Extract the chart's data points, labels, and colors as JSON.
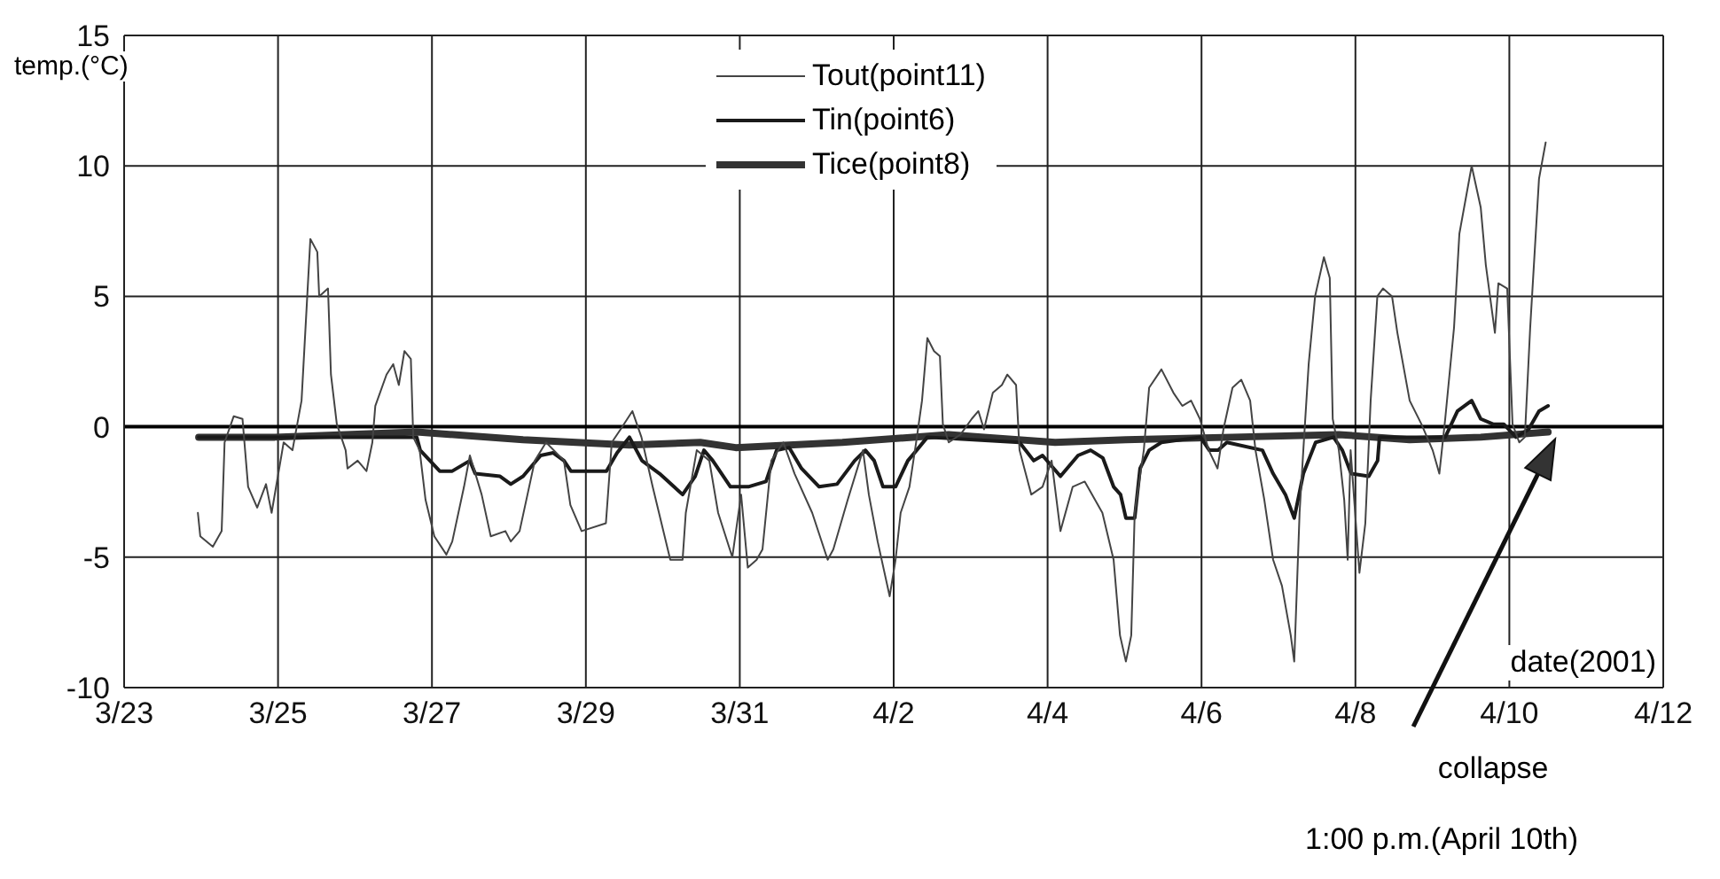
{
  "chart_data": {
    "type": "line",
    "xlabel": "date(2001)",
    "ylabel": "temp.(°C)",
    "xlim": [
      "2001-03-23",
      "2001-04-12"
    ],
    "xticks": [
      {
        "value": "2001-03-23",
        "label": "3/23"
      },
      {
        "value": "2001-03-25",
        "label": "3/25"
      },
      {
        "value": "2001-03-27",
        "label": "3/27"
      },
      {
        "value": "2001-03-29",
        "label": "3/29"
      },
      {
        "value": "2001-03-31",
        "label": "3/31"
      },
      {
        "value": "2001-04-02",
        "label": "4/2"
      },
      {
        "value": "2001-04-04",
        "label": "4/4"
      },
      {
        "value": "2001-04-06",
        "label": "4/6"
      },
      {
        "value": "2001-04-08",
        "label": "4/8"
      },
      {
        "value": "2001-04-10",
        "label": "4/10"
      },
      {
        "value": "2001-04-12",
        "label": "4/12"
      }
    ],
    "ylim": [
      -10,
      15
    ],
    "yticks": [
      -10,
      -5,
      0,
      5,
      10,
      15
    ],
    "grid": true,
    "legend": "top",
    "marker": "none",
    "line_style": "solid",
    "ref_lines": [
      {
        "axis": "y",
        "value": 0,
        "color": "#000000"
      }
    ],
    "annotations": [
      "collapse",
      "1:00 p.m.(April 10th)"
    ],
    "series": [
      {
        "name": "Tout(point11)",
        "color": "#444444",
        "x": [
          "2001-03-23T23:00",
          "2001-03-23T23:45",
          "2001-03-24T03:40",
          "2001-03-24T06:25",
          "2001-03-24T07:20",
          "2001-03-24T10:10",
          "2001-03-24T12:55",
          "2001-03-24T14:40",
          "2001-03-24T17:30",
          "2001-03-24T20:15",
          "2001-03-24T22:00",
          "2001-03-25T01:45",
          "2001-03-25T04:30",
          "2001-03-25T07:20",
          "2001-03-25T10:05",
          "2001-03-25T12:15",
          "2001-03-25T12:50",
          "2001-03-25T15:35",
          "2001-03-25T16:30",
          "2001-03-25T18:20",
          "2001-03-25T21:05",
          "2001-03-25T21:40",
          "2001-03-26T00:50",
          "2001-03-26T03:35",
          "2001-03-26T05:25",
          "2001-03-26T06:20",
          "2001-03-26T09:50",
          "2001-03-26T11:55",
          "2001-03-26T13:40",
          "2001-03-26T15:25",
          "2001-03-26T17:25",
          "2001-03-26T18:10",
          "2001-03-26T20:10",
          "2001-03-26T22:00",
          "2001-03-27T00:45",
          "2001-03-27T04:30",
          "2001-03-27T06:20",
          "2001-03-27T10:00",
          "2001-03-27T11:50",
          "2001-03-27T15:30",
          "2001-03-27T18:20",
          "2001-03-27T22:55",
          "2001-03-28T00:35",
          "2001-03-28T03:20",
          "2001-03-28T08:05",
          "2001-03-28T11:35",
          "2001-03-28T17:10",
          "2001-03-28T19:10",
          "2001-03-28T22:40",
          "2001-03-29T06:15",
          "2001-03-29T08:05",
          "2001-03-29T10:50",
          "2001-03-29T14:30",
          "2001-03-29T17:20",
          "2001-03-29T20:50",
          "2001-03-30T02:20",
          "2001-03-30T06:10",
          "2001-03-30T07:10",
          "2001-03-30T10:35",
          "2001-03-30T14:30",
          "2001-03-30T17:15",
          "2001-03-30T21:40",
          "2001-03-31T00:25",
          "2001-03-31T02:30",
          "2001-03-31T05:15",
          "2001-03-31T07:05",
          "2001-03-31T09:50",
          "2001-03-31T13:35",
          "2001-03-31T17:05",
          "2001-03-31T22:35",
          "2001-04-01T03:25",
          "2001-04-01T05:10",
          "2001-04-01T09:40",
          "2001-04-01T14:25",
          "2001-04-01T16:15",
          "2001-04-01T19:00",
          "2001-04-01T22:45",
          "2001-04-02T00:35",
          "2001-04-02T02:10",
          "2001-04-02T04:55",
          "2001-04-02T07:00",
          "2001-04-02T08:50",
          "2001-04-02T10:30",
          "2001-04-02T12:35",
          "2001-04-02T14:25",
          "2001-04-02T15:20",
          "2001-04-02T17:10",
          "2001-04-02T20:50",
          "2001-04-03T00:20",
          "2001-04-03T02:25",
          "2001-04-03T04:10",
          "2001-04-03T06:55",
          "2001-04-03T09:45",
          "2001-04-03T11:25",
          "2001-04-03T14:10",
          "2001-04-03T15:15",
          "2001-04-03T18:55",
          "2001-04-03T22:25",
          "2001-04-04T01:15",
          "2001-04-04T04:00",
          "2001-04-04T07:50",
          "2001-04-04T11:35",
          "2001-04-04T17:05",
          "2001-04-04T20:35",
          "2001-04-04T22:35",
          "2001-04-05T00:25",
          "2001-04-05T02:05",
          "2001-04-05T03:10",
          "2001-04-05T06:00",
          "2001-04-05T07:40",
          "2001-04-05T11:30",
          "2001-04-05T15:15",
          "2001-04-05T18:00",
          "2001-04-05T20:45",
          "2001-04-05T23:30",
          "2001-04-06T02:15",
          "2001-04-06T05:00",
          "2001-04-06T06:50",
          "2001-04-06T09:40",
          "2001-04-06T12:25",
          "2001-04-06T15:10",
          "2001-04-06T16:50",
          "2001-04-06T19:35",
          "2001-04-06T22:20",
          "2001-04-07T01:05",
          "2001-04-07T03:50",
          "2001-04-07T04:55",
          "2001-04-07T06:35",
          "2001-04-07T07:45",
          "2001-04-07T09:25",
          "2001-04-07T11:25",
          "2001-04-07T14:10",
          "2001-04-07T16:00",
          "2001-04-07T16:55",
          "2001-04-07T18:50",
          "2001-04-07T20:30",
          "2001-04-07T21:35",
          "2001-04-07T22:30",
          "2001-04-08T01:15",
          "2001-04-08T03:05",
          "2001-04-08T04:45",
          "2001-04-08T06:50",
          "2001-04-08T08:35",
          "2001-04-08T11:25",
          "2001-04-08T13:05",
          "2001-04-08T16:55",
          "2001-04-08T20:35",
          "2001-04-09T00:05",
          "2001-04-09T02:10",
          "2001-04-09T04:00",
          "2001-04-09T06:45",
          "2001-04-09T08:25",
          "2001-04-09T12:15",
          "2001-04-09T15:05",
          "2001-04-09T16:40",
          "2001-04-09T19:30",
          "2001-04-09T20:35",
          "2001-04-09T23:20",
          "2001-04-10T01:00",
          "2001-04-10T03:05",
          "2001-04-10T04:50",
          "2001-04-10T06:30",
          "2001-04-10T09:15",
          "2001-04-10T11:20"
        ],
        "values": [
          -3.3,
          -4.2,
          -4.6,
          -4.0,
          -0.6,
          0.4,
          0.3,
          -2.3,
          -3.1,
          -2.2,
          -3.3,
          -0.6,
          -0.9,
          1.0,
          7.2,
          6.7,
          5.0,
          5.3,
          2.0,
          0.1,
          -0.9,
          -1.6,
          -1.3,
          -1.7,
          -0.6,
          0.8,
          2.0,
          2.4,
          1.6,
          2.9,
          2.6,
          -0.4,
          -0.9,
          -2.8,
          -4.2,
          -4.9,
          -4.4,
          -2.3,
          -1.1,
          -2.6,
          -4.2,
          -4.0,
          -4.4,
          -4.0,
          -1.3,
          -0.6,
          -1.3,
          -3.0,
          -4.0,
          -3.7,
          -0.6,
          -0.1,
          0.6,
          -0.4,
          -2.3,
          -5.1,
          -5.1,
          -3.3,
          -0.9,
          -1.3,
          -3.3,
          -5.0,
          -2.6,
          -5.4,
          -5.1,
          -4.7,
          -1.3,
          -0.6,
          -1.8,
          -3.3,
          -5.1,
          -4.7,
          -2.8,
          -0.9,
          -2.6,
          -4.4,
          -6.5,
          -5.1,
          -3.3,
          -2.3,
          -0.6,
          1.0,
          3.4,
          2.9,
          2.7,
          0.1,
          -0.6,
          -0.3,
          0.3,
          0.6,
          -0.1,
          1.3,
          1.6,
          2.0,
          1.6,
          -0.9,
          -2.6,
          -2.3,
          -1.3,
          -4.0,
          -2.3,
          -2.1,
          -3.3,
          -5.1,
          -8.0,
          -9.0,
          -8.0,
          -3.3,
          -0.9,
          1.5,
          2.2,
          1.3,
          0.8,
          1.0,
          0.3,
          -0.9,
          -1.6,
          -0.1,
          1.5,
          1.8,
          1.0,
          -0.9,
          -2.8,
          -5.1,
          -6.1,
          -8.0,
          -9.0,
          -3.3,
          -0.9,
          2.4,
          5.0,
          6.5,
          5.7,
          0.3,
          -0.9,
          -2.8,
          -5.1,
          -0.9,
          -5.6,
          -3.7,
          1.0,
          5.0,
          5.3,
          5.0,
          3.6,
          1.0,
          0.1,
          -0.9,
          -1.8,
          0.3,
          3.8,
          7.4,
          10.0,
          8.4,
          6.2,
          3.6,
          5.5,
          5.3,
          0.1,
          -0.6,
          -0.4,
          3.8,
          9.5,
          10.9
        ]
      },
      {
        "name": "Tin(point6)",
        "color": "#1a1a1a",
        "x": [
          "2001-03-23T23:15",
          "2001-03-26T19:15",
          "2001-03-26T20:20",
          "2001-03-27T02:25",
          "2001-03-27T06:20",
          "2001-03-27T11:50",
          "2001-03-27T13:30",
          "2001-03-27T21:15",
          "2001-03-28T00:35",
          "2001-03-28T04:25",
          "2001-03-28T09:55",
          "2001-03-28T13:50",
          "2001-03-28T17:10",
          "2001-03-28T19:20",
          "2001-03-29T06:25",
          "2001-03-29T09:45",
          "2001-03-29T13:35",
          "2001-03-29T17:30",
          "2001-03-29T23:00",
          "2001-03-30T06:10",
          "2001-03-30T10:05",
          "2001-03-30T12:50",
          "2001-03-30T15:35",
          "2001-03-30T21:05",
          "2001-03-31T02:40",
          "2001-03-31T08:10",
          "2001-03-31T11:30",
          "2001-03-31T15:25",
          "2001-03-31T19:15",
          "2001-04-01T00:45",
          "2001-04-01T06:20",
          "2001-04-01T11:50",
          "2001-04-01T15:10",
          "2001-04-01T17:55",
          "2001-04-01T20:40",
          "2001-04-02T00:35",
          "2001-04-02T04:25",
          "2001-04-02T07:10",
          "2001-04-02T10:30",
          "2001-04-03T15:15",
          "2001-04-03T19:40",
          "2001-04-03T22:25",
          "2001-04-04T04:00",
          "2001-04-04T09:30",
          "2001-04-04T13:25",
          "2001-04-04T17:15",
          "2001-04-04T20:35",
          "2001-04-04T22:45",
          "2001-04-05T00:25",
          "2001-04-05T03:10",
          "2001-04-05T04:50",
          "2001-04-05T07:40",
          "2001-04-05T11:30",
          "2001-04-05T23:40",
          "2001-04-06T02:25",
          "2001-04-06T05:10",
          "2001-04-06T07:55",
          "2001-04-06T19:00",
          "2001-04-06T22:20",
          "2001-04-07T02:10",
          "2001-04-07T04:55",
          "2001-04-07T07:45",
          "2001-04-07T11:35",
          "2001-04-07T17:10",
          "2001-04-07T19:55",
          "2001-04-07T22:40",
          "2001-04-08T04:10",
          "2001-04-08T06:55",
          "2001-04-08T07:30",
          "2001-04-09T04:00",
          "2001-04-09T07:50",
          "2001-04-09T12:15",
          "2001-04-09T15:05",
          "2001-04-09T18:55",
          "2001-04-09T22:15",
          "2001-04-10T02:05",
          "2001-04-10T06:00",
          "2001-04-10T09:15",
          "2001-04-10T12:05"
        ],
        "values": [
          -0.4,
          -0.4,
          -0.9,
          -1.7,
          -1.7,
          -1.3,
          -1.8,
          -1.9,
          -2.2,
          -1.9,
          -1.1,
          -1.0,
          -1.3,
          -1.7,
          -1.7,
          -1.0,
          -0.4,
          -1.3,
          -1.8,
          -2.6,
          -1.9,
          -0.9,
          -1.3,
          -2.3,
          -2.3,
          -2.1,
          -0.9,
          -0.8,
          -1.6,
          -2.3,
          -2.2,
          -1.3,
          -0.9,
          -1.3,
          -2.3,
          -2.3,
          -1.3,
          -0.9,
          -0.4,
          -0.6,
          -1.3,
          -1.1,
          -1.9,
          -1.1,
          -0.9,
          -1.2,
          -2.3,
          -2.6,
          -3.5,
          -3.5,
          -1.6,
          -0.9,
          -0.6,
          -0.4,
          -0.9,
          -0.9,
          -0.6,
          -0.9,
          -1.8,
          -2.6,
          -3.5,
          -1.8,
          -0.6,
          -0.4,
          -0.9,
          -1.8,
          -1.9,
          -1.3,
          -0.4,
          -0.4,
          0.6,
          1.0,
          0.3,
          0.1,
          0.1,
          -0.4,
          -0.1,
          0.6,
          0.8
        ]
      },
      {
        "name": "Tice(point8)",
        "color": "#333333",
        "x": [
          "2001-03-23T23:15",
          "2001-03-24T23:00",
          "2001-03-26T19:15",
          "2001-03-28T04:25",
          "2001-03-29T13:35",
          "2001-03-30T11:40",
          "2001-03-30T22:45",
          "2001-04-01T08:00",
          "2001-04-02T17:10",
          "2001-04-03T04:10",
          "2001-04-04T02:20",
          "2001-04-05T00:25",
          "2001-04-06T09:40",
          "2001-04-07T18:50",
          "2001-04-08T16:55",
          "2001-04-09T15:05",
          "2001-04-10T12:05"
        ],
        "values": [
          -0.4,
          -0.4,
          -0.2,
          -0.5,
          -0.7,
          -0.6,
          -0.8,
          -0.6,
          -0.3,
          -0.4,
          -0.6,
          -0.5,
          -0.4,
          -0.3,
          -0.5,
          -0.4,
          -0.2
        ]
      }
    ]
  }
}
